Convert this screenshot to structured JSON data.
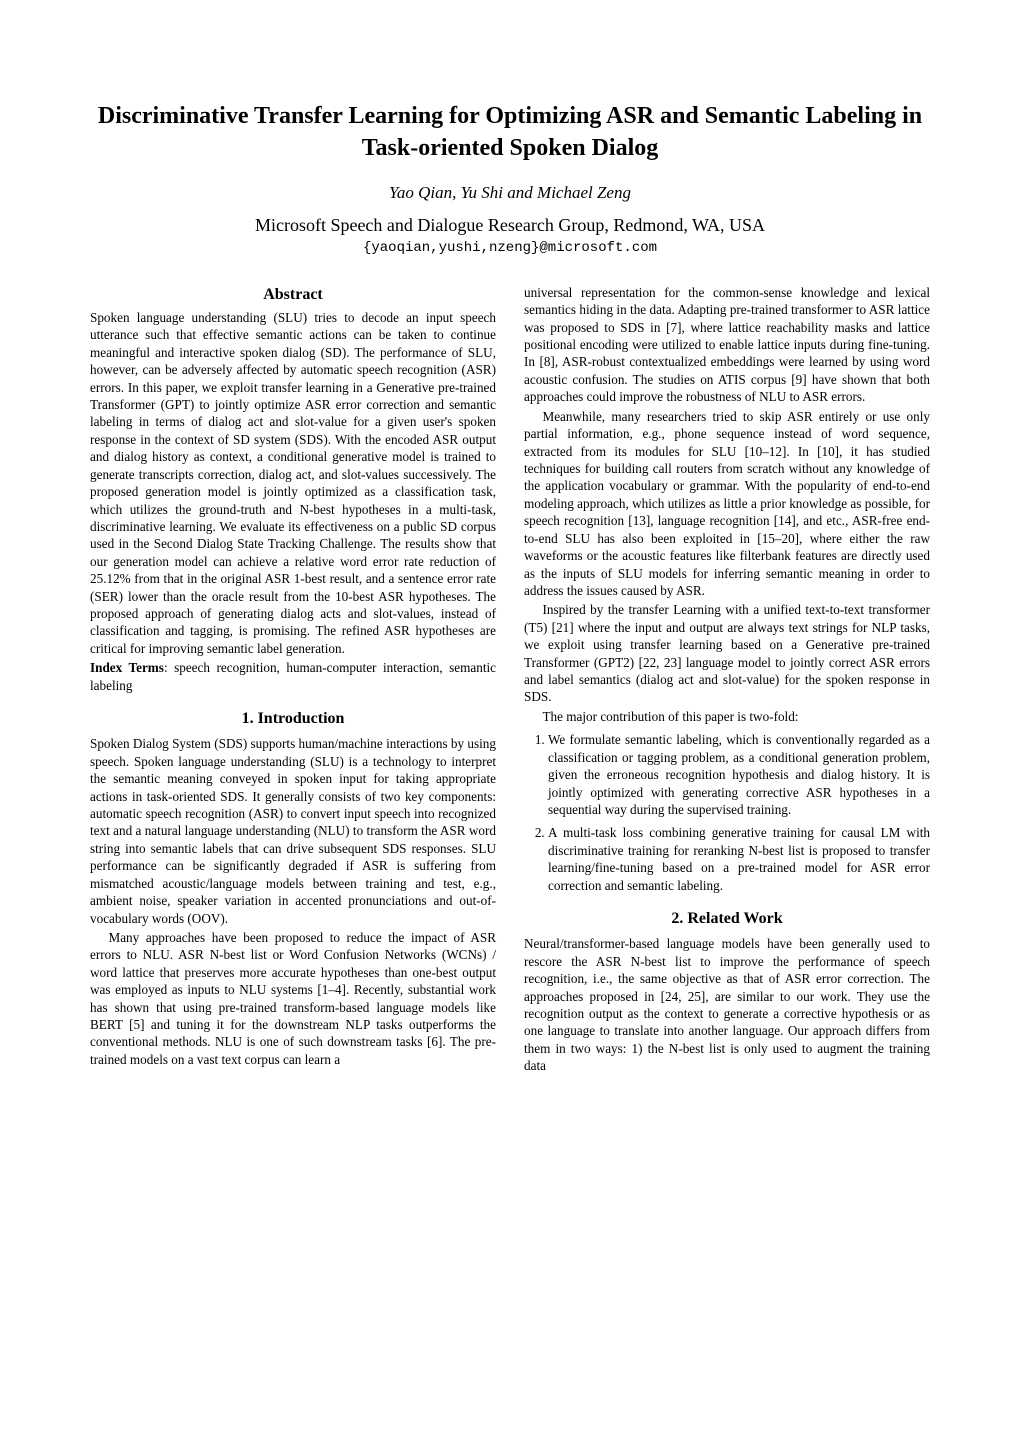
{
  "title": "Discriminative Transfer Learning for Optimizing ASR and Semantic Labeling in Task-oriented Spoken Dialog",
  "authors": "Yao Qian, Yu Shi and Michael Zeng",
  "affiliation": "Microsoft Speech and Dialogue Research Group, Redmond, WA, USA",
  "email": "{yaoqian,yushi,nzeng}@microsoft.com",
  "left": {
    "abstract_head": "Abstract",
    "abstract": "Spoken language understanding (SLU) tries to decode an input speech utterance such that effective semantic actions can be taken to continue meaningful and interactive spoken dialog (SD). The performance of SLU, however, can be adversely affected by automatic speech recognition (ASR) errors. In this paper, we exploit transfer learning in a Generative pre-trained Transformer (GPT) to jointly optimize ASR error correction and semantic labeling in terms of dialog act and slot-value for a given user's spoken response in the context of SD system (SDS). With the encoded ASR output and dialog history as context, a conditional generative model is trained to generate transcripts correction, dialog act, and slot-values successively. The proposed generation model is jointly optimized as a classification task, which utilizes the ground-truth and N-best hypotheses in a multi-task, discriminative learning. We evaluate its effectiveness on a public SD corpus used in the Second Dialog State Tracking Challenge. The results show that our generation model can achieve a relative word error rate reduction of 25.12% from that in the original ASR 1-best result, and a sentence error rate (SER) lower than the oracle result from the 10-best ASR hypotheses. The proposed approach of generating dialog acts and slot-values, instead of classification and tagging, is promising. The refined ASR hypotheses are critical for improving semantic label generation.",
    "index_label": "Index Terms",
    "index_terms": ": speech recognition, human-computer interaction, semantic labeling",
    "intro_head": "1.  Introduction",
    "intro_p1": "Spoken Dialog System (SDS) supports human/machine interactions by using speech. Spoken language understanding (SLU) is a technology to interpret the semantic meaning conveyed in spoken input for taking appropriate actions in task-oriented SDS. It generally consists of two key components: automatic speech recognition (ASR) to convert input speech into recognized text and a natural language understanding (NLU) to transform the ASR word string into semantic labels that can drive subsequent SDS responses. SLU performance can be significantly degraded if ASR is suffering from mismatched acoustic/language models between training and test, e.g., ambient noise, speaker variation in accented pronunciations and out-of-vocabulary words (OOV).",
    "intro_p2": "Many approaches have been proposed to reduce the impact of ASR errors to NLU. ASR N-best list or Word Confusion Networks (WCNs) / word lattice that preserves more accurate hypotheses than one-best output was employed as inputs to NLU systems [1–4]. Recently, substantial work has shown that using pre-trained transform-based language models like BERT [5] and tuning it for the downstream NLP tasks outperforms the conventional methods. NLU is one of such downstream tasks [6]. The pre-trained models on a vast text corpus can learn a"
  },
  "right": {
    "p1": "universal representation for the common-sense knowledge and lexical semantics hiding in the data. Adapting pre-trained transformer to ASR lattice was proposed to SDS in [7], where lattice reachability masks and lattice positional encoding were utilized to enable lattice inputs during fine-tuning. In [8], ASR-robust contextualized embeddings were learned by using word acoustic confusion. The studies on ATIS corpus [9] have shown that both approaches could improve the robustness of NLU to ASR errors.",
    "p2": "Meanwhile, many researchers tried to skip ASR entirely or use only partial information, e.g., phone sequence instead of word sequence, extracted from its modules for SLU [10–12]. In [10], it has studied techniques for building call routers from scratch without any knowledge of the application vocabulary or grammar. With the popularity of end-to-end modeling approach, which utilizes as little a prior knowledge as possible, for speech recognition [13], language recognition [14], and etc., ASR-free end-to-end SLU has also been exploited in [15–20], where either the raw waveforms or the acoustic features like filterbank features are directly used as the inputs of SLU models for inferring semantic meaning in order to address the issues caused by ASR.",
    "p3": "Inspired by the transfer Learning with a unified text-to-text transformer (T5) [21] where the input and output are always text strings for NLP tasks, we exploit using transfer learning based on a Generative pre-trained Transformer (GPT2) [22, 23] language model to jointly correct ASR errors and label semantics (dialog act and slot-value) for the spoken response in SDS.",
    "p4": "The major contribution of this paper is two-fold:",
    "li1": "We formulate semantic labeling, which is conventionally regarded as a classification or tagging problem, as a conditional generation problem, given the erroneous recognition hypothesis and dialog history. It is jointly optimized with generating corrective ASR hypotheses in a sequential way during the supervised training.",
    "li2": "A multi-task loss combining generative training for causal LM with discriminative training for reranking N-best list is proposed to transfer learning/fine-tuning based on a pre-trained model for ASR error correction and semantic labeling.",
    "related_head": "2.  Related Work",
    "related_p1": "Neural/transformer-based language models have been generally used to rescore the ASR N-best list to improve the performance of speech recognition, i.e., the same objective as that of ASR error correction. The approaches proposed in [24, 25], are similar to our work. They use the recognition output as the context to generate a corrective hypothesis or as one language to translate into another language. Our approach differs from them in two ways: 1) the N-best list is only used to augment the training data"
  }
}
